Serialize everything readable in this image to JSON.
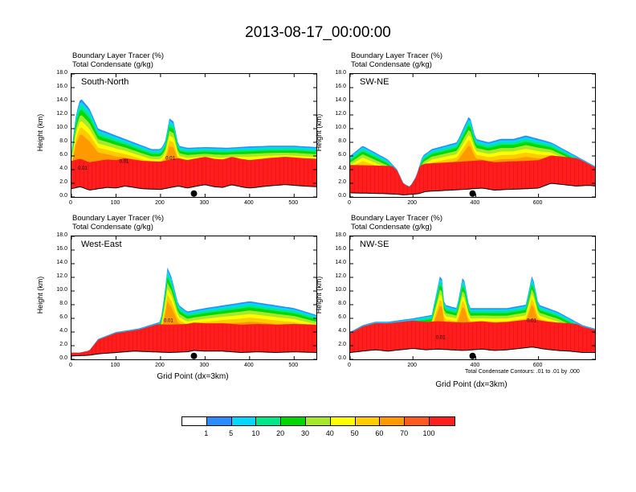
{
  "title": "2013-08-17_00:00:00",
  "field_labels": {
    "tracer": "Boundary Layer Tracer   (%)",
    "condensate": "Total Condensate   (g/kg)"
  },
  "axis": {
    "ylabel": "Height (km)",
    "xlabel": "Grid Point (dx=3km)"
  },
  "footnote": "Total Condensate Contours: .01 to .01 by .000",
  "colorbar": {
    "colors": [
      "#ffffff",
      "#2b8cff",
      "#00d8ff",
      "#00e88a",
      "#00d800",
      "#a8e82a",
      "#ffff00",
      "#ffcc00",
      "#ff9900",
      "#ff5a1e",
      "#ff1e1e"
    ],
    "labels": [
      "1",
      "5",
      "10",
      "20",
      "30",
      "40",
      "50",
      "60",
      "70",
      "100"
    ]
  },
  "chart_data": [
    {
      "type": "heatmap",
      "name": "South-North",
      "ylim": [
        0,
        18
      ],
      "yticks": [
        "0.0",
        "2.0",
        "4.0",
        "6.0",
        "8.0",
        "10.0",
        "12.0",
        "14.0",
        "16.0",
        "18.0"
      ],
      "xlim": [
        0,
        550
      ],
      "xticks": [
        0,
        100,
        200,
        300,
        400,
        500
      ],
      "xtick_labels": [
        "0",
        "100",
        "200",
        "300",
        "400",
        "500"
      ],
      "marker_x": 275,
      "profile": [
        [
          0,
          6.6
        ],
        [
          10,
          12
        ],
        [
          20,
          14.5
        ],
        [
          40,
          13
        ],
        [
          60,
          10
        ],
        [
          80,
          9.5
        ],
        [
          100,
          9
        ],
        [
          120,
          8.5
        ],
        [
          140,
          8
        ],
        [
          160,
          7.5
        ],
        [
          180,
          7
        ],
        [
          200,
          7
        ],
        [
          210,
          8
        ],
        [
          220,
          11.5
        ],
        [
          230,
          11
        ],
        [
          240,
          7.5
        ],
        [
          260,
          7.2
        ],
        [
          300,
          7.3
        ],
        [
          350,
          7.2
        ],
        [
          400,
          7.4
        ],
        [
          450,
          7.5
        ],
        [
          500,
          7.5
        ],
        [
          550,
          7.3
        ]
      ],
      "ground": [
        [
          0,
          1.2
        ],
        [
          20,
          1.5
        ],
        [
          40,
          1.0
        ],
        [
          60,
          1.2
        ],
        [
          80,
          1.4
        ],
        [
          100,
          1.3
        ],
        [
          120,
          1.6
        ],
        [
          160,
          1.2
        ],
        [
          200,
          1.1
        ],
        [
          240,
          1.6
        ],
        [
          260,
          1.3
        ],
        [
          275,
          1.5
        ],
        [
          300,
          1.8
        ],
        [
          320,
          1.5
        ],
        [
          340,
          1.4
        ],
        [
          360,
          1.8
        ],
        [
          380,
          1.5
        ],
        [
          400,
          1.3
        ],
        [
          440,
          1.6
        ],
        [
          480,
          1.8
        ],
        [
          520,
          1.6
        ],
        [
          550,
          1.5
        ]
      ],
      "labels": [
        {
          "x": 25,
          "y": 4.0,
          "text": "0.01"
        },
        {
          "x": 118,
          "y": 5.0,
          "text": "0.01"
        },
        {
          "x": 222,
          "y": 5.5,
          "text": "0.01"
        }
      ]
    },
    {
      "type": "heatmap",
      "name": "SW-NE",
      "ylim": [
        0,
        18
      ],
      "yticks": [
        "0.0",
        "2.0",
        "4.0",
        "6.0",
        "8.0",
        "10.0",
        "12.0",
        "14.0",
        "16.0",
        "18.0"
      ],
      "xlim": [
        0,
        780
      ],
      "xticks": [
        0,
        200,
        400,
        600
      ],
      "xtick_labels": [
        "0",
        "200",
        "400",
        "600"
      ],
      "marker_x": 390,
      "profile": [
        [
          0,
          6
        ],
        [
          40,
          7.5
        ],
        [
          80,
          6.5
        ],
        [
          120,
          5.5
        ],
        [
          150,
          4
        ],
        [
          170,
          2
        ],
        [
          190,
          1.5
        ],
        [
          210,
          3
        ],
        [
          230,
          6
        ],
        [
          260,
          7
        ],
        [
          300,
          7.5
        ],
        [
          340,
          8
        ],
        [
          360,
          10
        ],
        [
          380,
          12
        ],
        [
          400,
          8.5
        ],
        [
          440,
          8
        ],
        [
          480,
          8.5
        ],
        [
          520,
          8.5
        ],
        [
          560,
          9
        ],
        [
          600,
          8.5
        ],
        [
          640,
          8
        ],
        [
          680,
          7
        ],
        [
          720,
          6
        ],
        [
          760,
          5
        ],
        [
          780,
          4.5
        ]
      ],
      "ground": [
        [
          0,
          0.6
        ],
        [
          100,
          0.5
        ],
        [
          150,
          0.4
        ],
        [
          170,
          0.3
        ],
        [
          200,
          0.4
        ],
        [
          220,
          0.5
        ],
        [
          240,
          0.8
        ],
        [
          280,
          0.9
        ],
        [
          320,
          1.0
        ],
        [
          360,
          1.1
        ],
        [
          390,
          1.2
        ],
        [
          420,
          1.3
        ],
        [
          460,
          1.0
        ],
        [
          500,
          1.1
        ],
        [
          560,
          1.2
        ],
        [
          600,
          1.3
        ],
        [
          640,
          2.0
        ],
        [
          680,
          1.8
        ],
        [
          720,
          1.6
        ],
        [
          760,
          1.7
        ],
        [
          780,
          1.6
        ]
      ],
      "labels": []
    },
    {
      "type": "heatmap",
      "name": "West-East",
      "ylim": [
        0,
        18
      ],
      "yticks": [
        "0.0",
        "2.0",
        "4.0",
        "6.0",
        "8.0",
        "10.0",
        "12.0",
        "14.0",
        "16.0",
        "18.0"
      ],
      "xlim": [
        0,
        550
      ],
      "xticks": [
        0,
        100,
        200,
        300,
        400,
        500
      ],
      "xtick_labels": [
        "0",
        "100",
        "200",
        "300",
        "400",
        "500"
      ],
      "marker_x": 275,
      "profile": [
        [
          0,
          1.0
        ],
        [
          20,
          1.0
        ],
        [
          40,
          1.3
        ],
        [
          60,
          3
        ],
        [
          100,
          4
        ],
        [
          150,
          4.5
        ],
        [
          200,
          5.5
        ],
        [
          210,
          10
        ],
        [
          215,
          13.5
        ],
        [
          225,
          12
        ],
        [
          240,
          8
        ],
        [
          260,
          7
        ],
        [
          300,
          7.5
        ],
        [
          350,
          8
        ],
        [
          400,
          8.5
        ],
        [
          450,
          8
        ],
        [
          500,
          7.5
        ],
        [
          550,
          6.5
        ]
      ],
      "ground": [
        [
          0,
          0.5
        ],
        [
          40,
          0.6
        ],
        [
          60,
          0.8
        ],
        [
          100,
          1.0
        ],
        [
          140,
          1.2
        ],
        [
          180,
          1.1
        ],
        [
          220,
          1.0
        ],
        [
          260,
          1.1
        ],
        [
          275,
          1.3
        ],
        [
          300,
          1.2
        ],
        [
          340,
          1.2
        ],
        [
          380,
          1.0
        ],
        [
          420,
          1.1
        ],
        [
          460,
          1.0
        ],
        [
          500,
          1.1
        ],
        [
          550,
          1.0
        ]
      ],
      "labels": [
        {
          "x": 218,
          "y": 5.5,
          "text": "0.01"
        }
      ]
    },
    {
      "type": "heatmap",
      "name": "NW-SE",
      "ylim": [
        0,
        18
      ],
      "yticks": [
        "0.0",
        "2.0",
        "4.0",
        "6.0",
        "8.0",
        "10.0",
        "12.0",
        "14.0",
        "16.0",
        "18.0"
      ],
      "xlim": [
        0,
        780
      ],
      "xticks": [
        0,
        200,
        400,
        600
      ],
      "xtick_labels": [
        "0",
        "200",
        "400",
        "600"
      ],
      "marker_x": 390,
      "profile": [
        [
          0,
          4
        ],
        [
          40,
          5
        ],
        [
          80,
          5.5
        ],
        [
          120,
          5.5
        ],
        [
          200,
          6
        ],
        [
          260,
          6.5
        ],
        [
          290,
          13
        ],
        [
          300,
          8
        ],
        [
          340,
          7.5
        ],
        [
          360,
          12.5
        ],
        [
          380,
          7.5
        ],
        [
          440,
          7.5
        ],
        [
          500,
          7.5
        ],
        [
          560,
          8
        ],
        [
          580,
          12.5
        ],
        [
          600,
          8
        ],
        [
          660,
          7
        ],
        [
          700,
          6
        ],
        [
          740,
          5
        ],
        [
          780,
          4.5
        ]
      ],
      "ground": [
        [
          0,
          1.0
        ],
        [
          40,
          1.2
        ],
        [
          80,
          1.4
        ],
        [
          120,
          1.2
        ],
        [
          160,
          1.4
        ],
        [
          200,
          1.6
        ],
        [
          240,
          1.4
        ],
        [
          280,
          1.5
        ],
        [
          320,
          1.4
        ],
        [
          360,
          1.3
        ],
        [
          390,
          1.4
        ],
        [
          420,
          1.5
        ],
        [
          460,
          1.3
        ],
        [
          500,
          1.4
        ],
        [
          540,
          1.6
        ],
        [
          580,
          1.8
        ],
        [
          620,
          1.5
        ],
        [
          660,
          1.3
        ],
        [
          700,
          1.2
        ],
        [
          740,
          1.0
        ],
        [
          780,
          1.0
        ]
      ],
      "labels": [
        {
          "x": 288,
          "y": 3.0,
          "text": "0.01"
        },
        {
          "x": 578,
          "y": 5.5,
          "text": "0.01"
        }
      ]
    }
  ]
}
